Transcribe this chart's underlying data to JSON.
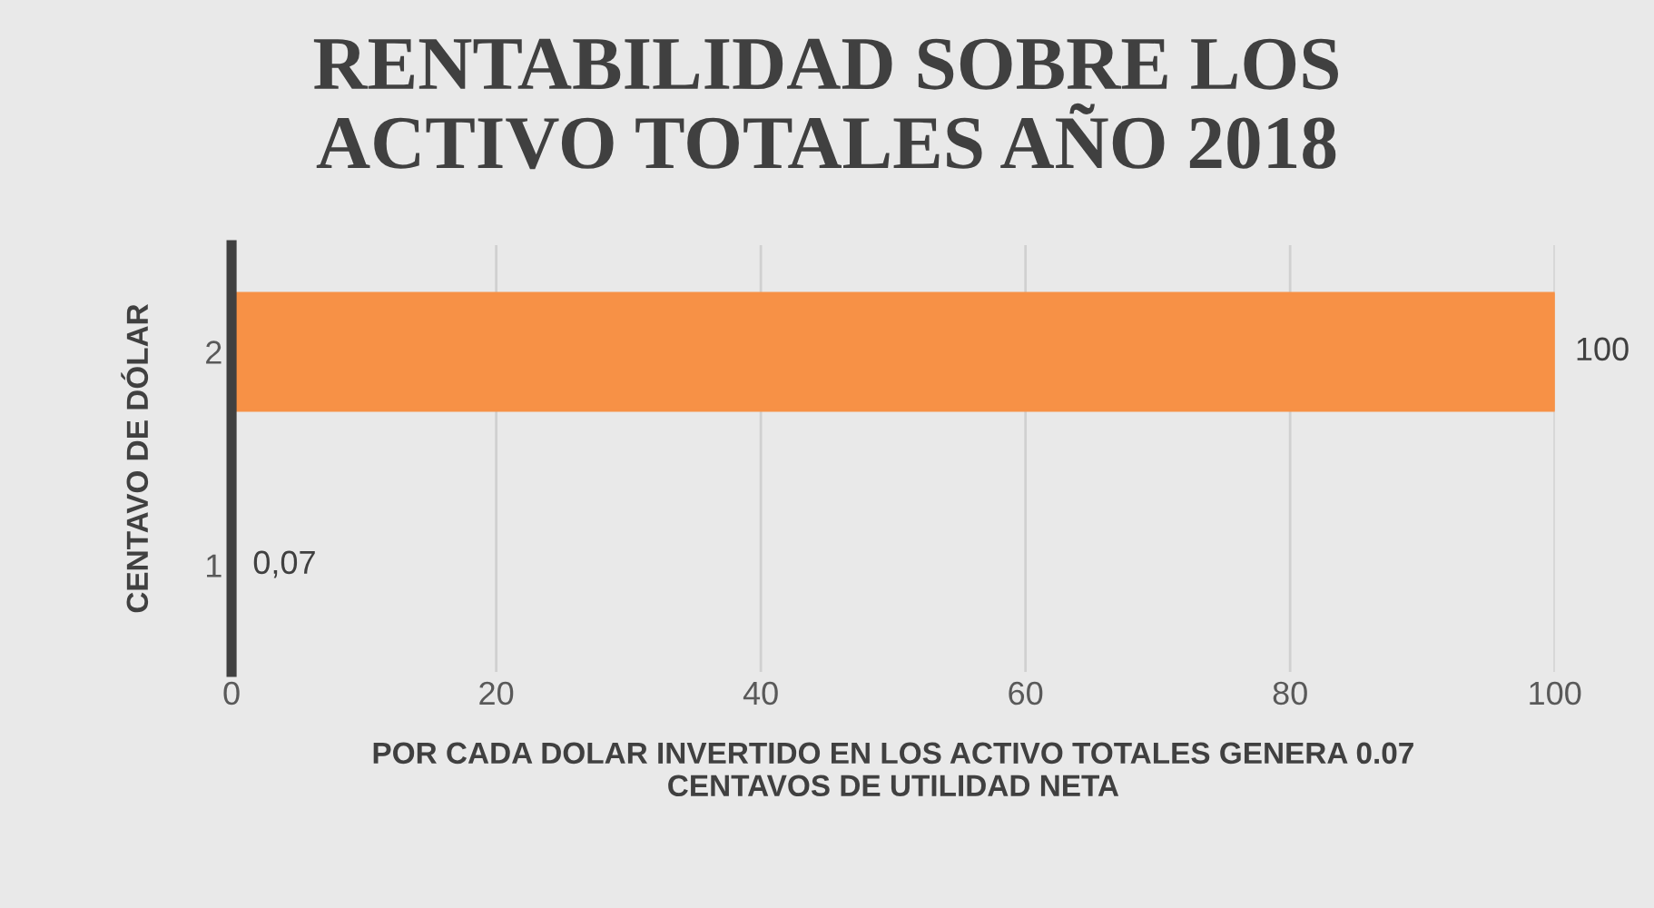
{
  "chart_data": {
    "type": "bar",
    "orientation": "horizontal",
    "title": "RENTABILIDAD SOBRE LOS\nACTIVO TOTALES AÑO 2018",
    "xlabel": "POR CADA DOLAR INVERTIDO EN LOS ACTIVO TOTALES GENERA 0.07\nCENTAVOS DE UTILIDAD NETA",
    "ylabel": "CENTAVO DE DÓLAR",
    "categories": [
      "2",
      "1"
    ],
    "values": [
      100,
      0.07
    ],
    "colors": [
      "#f79146",
      "#b8561f"
    ],
    "value_labels": [
      "100",
      "0,07"
    ],
    "xlim": [
      0,
      100
    ],
    "xticks": [
      0,
      20,
      40,
      60,
      80,
      100
    ],
    "grid": "x",
    "legend": false
  }
}
